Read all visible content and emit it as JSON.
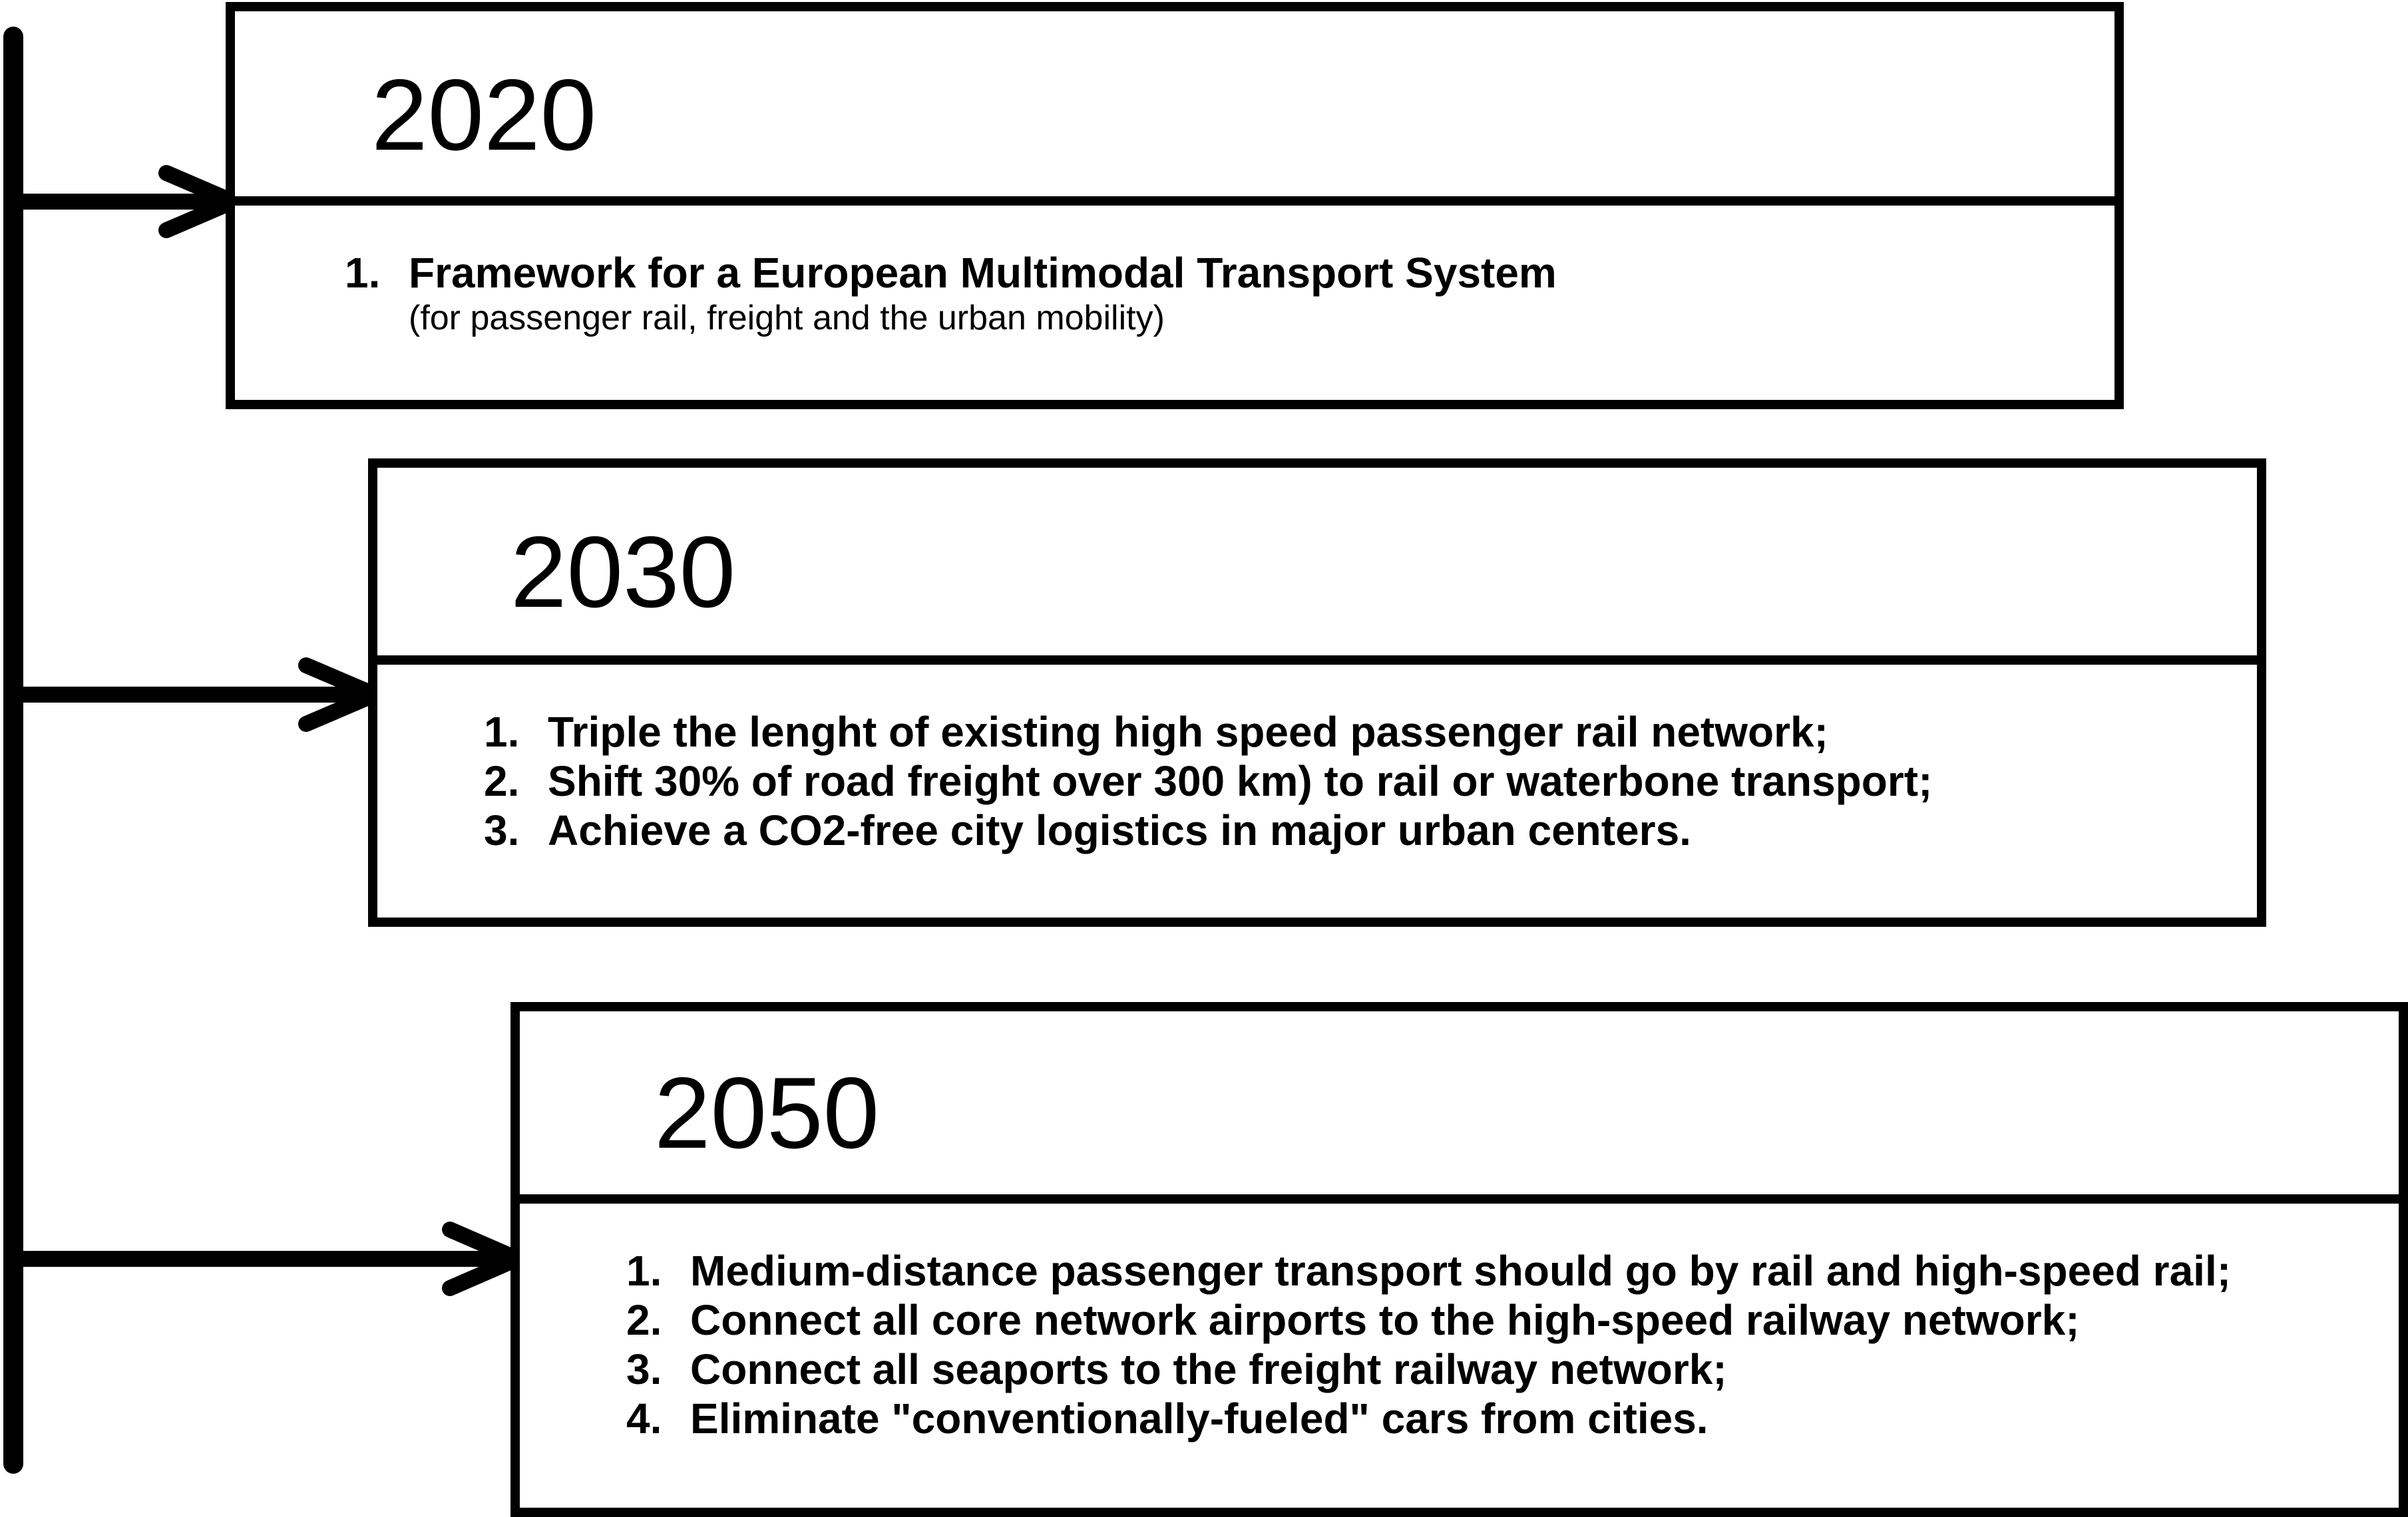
{
  "milestones": [
    {
      "year": "2020",
      "items": [
        {
          "num": "1.",
          "text": "Framework for a European Multimodal Transport System"
        }
      ],
      "note": "(for passenger rail, freight and the urban mobility)"
    },
    {
      "year": "2030",
      "items": [
        {
          "num": "1.",
          "text": "Triple the lenght of existing high speed passenger rail network;"
        },
        {
          "num": "2.",
          "text": "Shift 30% of road freight over 300 km) to rail or waterbone transport;"
        },
        {
          "num": "3.",
          "text": "Achieve a CO2-free city logistics in major urban centers."
        }
      ]
    },
    {
      "year": "2050",
      "items": [
        {
          "num": "1.",
          "text": "Medium-distance passenger transport should go by rail and high-speed rail;"
        },
        {
          "num": "2.",
          "text": "Connect all core network airports to the high-speed railway network;"
        },
        {
          "num": "3.",
          "text": "Connect all seaports to the freight railway network;"
        },
        {
          "num": "4.",
          "text": "Eliminate \"conventionally-fueled\" cars from cities."
        }
      ]
    }
  ]
}
